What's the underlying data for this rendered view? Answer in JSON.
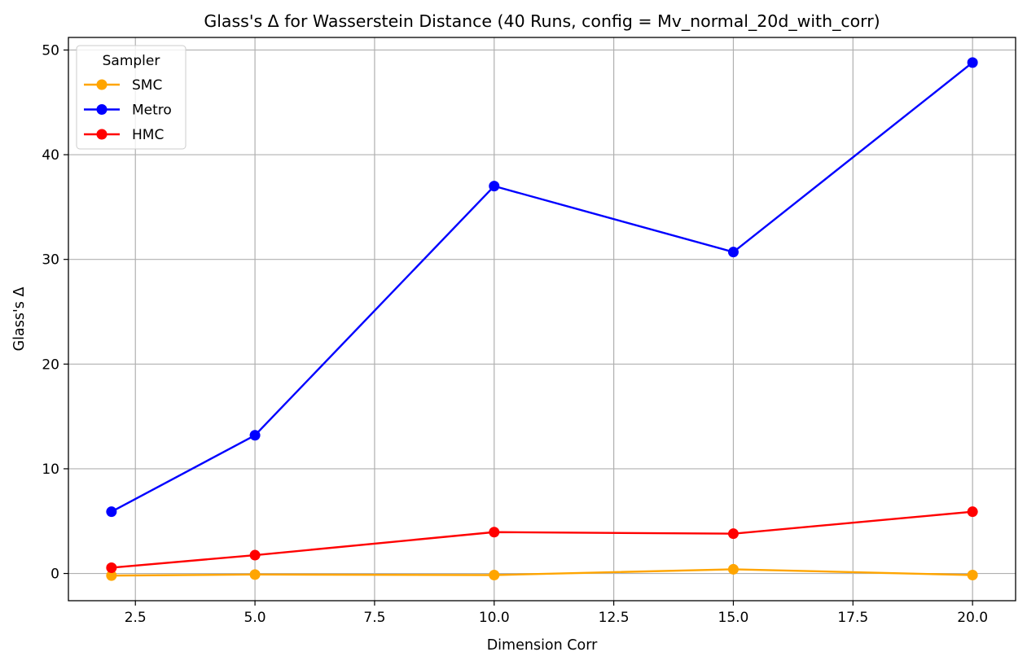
{
  "chart_data": {
    "type": "line",
    "title": "Glass's Δ for Wasserstein Distance (40 Runs, config = Mv_normal_20d_with_corr)",
    "xlabel": "Dimension Corr",
    "ylabel": "Glass's Δ",
    "x": [
      2,
      5,
      10,
      15,
      20
    ],
    "xlim": [
      1.1,
      20.9
    ],
    "ylim": [
      -2.6,
      51.2
    ],
    "xticks": [
      2.5,
      5.0,
      7.5,
      10.0,
      12.5,
      15.0,
      17.5,
      20.0
    ],
    "xtick_labels": [
      "2.5",
      "5.0",
      "7.5",
      "10.0",
      "12.5",
      "15.0",
      "17.5",
      "20.0"
    ],
    "yticks": [
      0,
      10,
      20,
      30,
      40,
      50
    ],
    "ytick_labels": [
      "0",
      "10",
      "20",
      "30",
      "40",
      "50"
    ],
    "grid": true,
    "legend": {
      "title": "Sampler",
      "position": "top-left"
    },
    "series": [
      {
        "name": "SMC",
        "color": "#FFA500",
        "values": [
          -0.2,
          -0.1,
          -0.15,
          0.4,
          -0.15
        ]
      },
      {
        "name": "Metro",
        "color": "#0000FF",
        "values": [
          5.9,
          13.2,
          37.0,
          30.7,
          48.8
        ]
      },
      {
        "name": "HMC",
        "color": "#FF0000",
        "values": [
          0.55,
          1.75,
          3.95,
          3.8,
          5.9
        ]
      }
    ]
  }
}
